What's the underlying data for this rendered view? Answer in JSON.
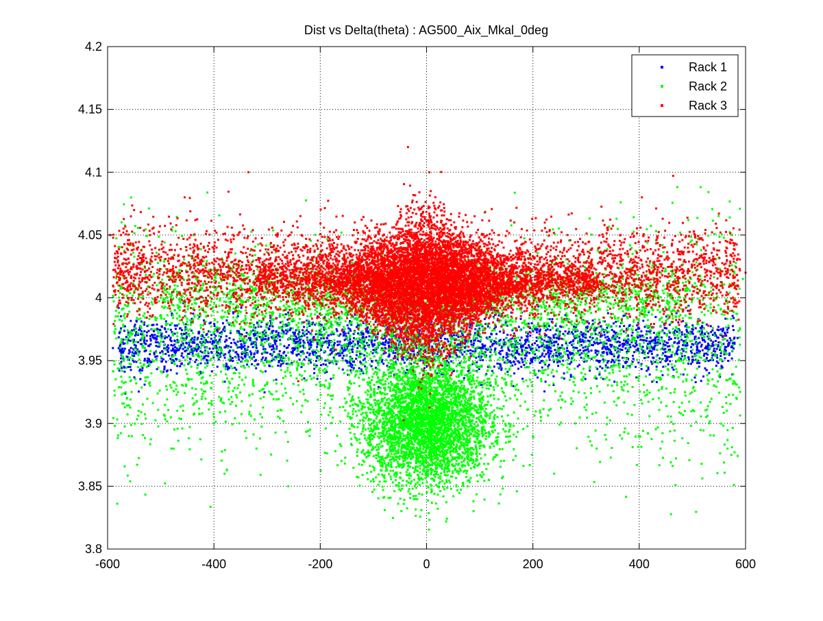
{
  "chart_data": {
    "type": "scatter",
    "title": "Dist vs Delta(theta) : AG500_Aix_Mkal_0deg",
    "xlabel": "",
    "ylabel": "",
    "xlim": [
      -600,
      600
    ],
    "ylim": [
      3.8,
      4.2
    ],
    "x_ticks": [
      -600,
      -400,
      -200,
      0,
      200,
      400,
      600
    ],
    "y_ticks": [
      3.8,
      3.85,
      3.9,
      3.95,
      4.0,
      4.05,
      4.1,
      4.15,
      4.2
    ],
    "x_tick_labels": [
      "-600",
      "-400",
      "-200",
      "0",
      "200",
      "400",
      "600"
    ],
    "y_tick_labels": [
      "3.8",
      "3.85",
      "3.9",
      "3.95",
      "4",
      "4.05",
      "4.1",
      "4.15",
      "4.2"
    ],
    "grid": true,
    "legend_position": "top-right",
    "series": [
      {
        "name": "Rack 1",
        "color": "#0000ff",
        "marker": "dot",
        "distribution": {
          "x_range": [
            -590,
            590
          ],
          "y_center": 3.962,
          "y_spread": 0.012,
          "points": [
            [
              -590,
              3.96
            ],
            [
              -570,
              3.95
            ],
            [
              -548,
              3.97
            ],
            [
              -530,
              3.96
            ],
            [
              -512,
              3.955
            ],
            [
              -495,
              3.965
            ],
            [
              -470,
              3.958
            ],
            [
              -452,
              3.972
            ],
            [
              -430,
              3.962
            ],
            [
              -412,
              3.95
            ],
            [
              -390,
              3.966
            ],
            [
              -370,
              3.958
            ],
            [
              -350,
              3.971
            ],
            [
              -330,
              3.955
            ],
            [
              -310,
              3.963
            ],
            [
              -290,
              3.968
            ],
            [
              -270,
              3.952
            ],
            [
              -250,
              3.96
            ],
            [
              -230,
              3.97
            ],
            [
              -210,
              3.957
            ],
            [
              -190,
              3.965
            ],
            [
              -170,
              3.955
            ],
            [
              -150,
              3.968
            ],
            [
              -130,
              3.96
            ],
            [
              -110,
              3.972
            ],
            [
              110,
              3.962
            ],
            [
              130,
              3.955
            ],
            [
              150,
              3.968
            ],
            [
              170,
              3.958
            ],
            [
              190,
              3.966
            ],
            [
              210,
              3.952
            ],
            [
              230,
              3.961
            ],
            [
              250,
              3.97
            ],
            [
              270,
              3.956
            ],
            [
              290,
              3.965
            ],
            [
              310,
              3.958
            ],
            [
              330,
              3.97
            ],
            [
              350,
              3.955
            ],
            [
              370,
              3.963
            ],
            [
              390,
              3.968
            ],
            [
              410,
              3.952
            ],
            [
              430,
              3.962
            ],
            [
              452,
              3.971
            ],
            [
              470,
              3.956
            ],
            [
              490,
              3.964
            ],
            [
              512,
              3.958
            ],
            [
              535,
              3.966
            ],
            [
              560,
              3.955
            ],
            [
              585,
              3.968
            ]
          ]
        }
      },
      {
        "name": "Rack 2",
        "color": "#00ff00",
        "marker": "dot",
        "distribution": {
          "x_range": [
            -590,
            595
          ],
          "y_center": 3.92,
          "points": [
            [
              -580,
              4.01
            ],
            [
              -560,
              3.89
            ],
            [
              -540,
              3.99
            ],
            [
              -520,
              3.93
            ],
            [
              -500,
              4.0
            ],
            [
              -480,
              3.88
            ],
            [
              -460,
              3.97
            ],
            [
              -440,
              3.92
            ],
            [
              -420,
              4.01
            ],
            [
              -400,
              3.9
            ],
            [
              -380,
              3.86
            ],
            [
              -360,
              3.94
            ],
            [
              -340,
              3.99
            ],
            [
              -320,
              3.88
            ],
            [
              -300,
              3.95
            ],
            [
              -280,
              3.91
            ],
            [
              -260,
              3.85
            ],
            [
              -240,
              3.97
            ],
            [
              -220,
              3.89
            ],
            [
              -200,
              3.93
            ],
            [
              -180,
              3.98
            ],
            [
              -160,
              3.87
            ],
            [
              -140,
              3.92
            ],
            [
              -120,
              3.96
            ],
            [
              -100,
              3.88
            ],
            [
              -80,
              3.91
            ],
            [
              -60,
              3.86
            ],
            [
              -40,
              3.9
            ],
            [
              -20,
              3.87
            ],
            [
              0,
              3.85
            ],
            [
              20,
              3.88
            ],
            [
              40,
              3.9
            ],
            [
              60,
              3.86
            ],
            [
              80,
              3.92
            ],
            [
              100,
              3.88
            ],
            [
              120,
              3.95
            ],
            [
              140,
              3.87
            ],
            [
              160,
              3.93
            ],
            [
              180,
              3.98
            ],
            [
              200,
              3.89
            ],
            [
              220,
              3.94
            ],
            [
              240,
              3.86
            ],
            [
              260,
              3.97
            ],
            [
              280,
              3.9
            ],
            [
              300,
              3.95
            ],
            [
              320,
              3.88
            ],
            [
              340,
              3.99
            ],
            [
              360,
              3.92
            ],
            [
              380,
              3.96
            ],
            [
              400,
              3.89
            ],
            [
              420,
              4.0
            ],
            [
              440,
              3.88
            ],
            [
              460,
              3.98
            ],
            [
              480,
              3.95
            ],
            [
              500,
              4.01
            ],
            [
              520,
              3.97
            ],
            [
              540,
              4.0
            ],
            [
              560,
              3.99
            ],
            [
              580,
              4.01
            ],
            [
              595,
              4.015
            ]
          ]
        }
      },
      {
        "name": "Rack 3",
        "color": "#ff0000",
        "marker": "dot",
        "distribution": {
          "x_range": [
            -595,
            600
          ],
          "y_center": 4.02,
          "points": [
            [
              -595,
              4.05
            ],
            [
              -575,
              4.02
            ],
            [
              -555,
              4.0
            ],
            [
              -535,
              4.03
            ],
            [
              -515,
              4.01
            ],
            [
              -495,
              4.04
            ],
            [
              -475,
              4.02
            ],
            [
              -455,
              4.08
            ],
            [
              -435,
              4.03
            ],
            [
              -415,
              4.0
            ],
            [
              -395,
              4.04
            ],
            [
              -375,
              4.02
            ],
            [
              -355,
              4.05
            ],
            [
              -335,
              4.1
            ],
            [
              -315,
              4.03
            ],
            [
              -295,
              4.01
            ],
            [
              -275,
              4.04
            ],
            [
              -255,
              4.02
            ],
            [
              -235,
              4.05
            ],
            [
              -215,
              4.03
            ],
            [
              -195,
              4.01
            ],
            [
              -175,
              4.04
            ],
            [
              -155,
              4.02
            ],
            [
              -135,
              4.06
            ],
            [
              -115,
              4.03
            ],
            [
              -95,
              4.0
            ],
            [
              -75,
              4.04
            ],
            [
              -55,
              4.06
            ],
            [
              -35,
              4.12
            ],
            [
              -15,
              4.03
            ],
            [
              5,
              4.1
            ],
            [
              25,
              4.05
            ],
            [
              45,
              4.02
            ],
            [
              65,
              4.04
            ],
            [
              85,
              4.01
            ],
            [
              105,
              4.05
            ],
            [
              125,
              4.02
            ],
            [
              145,
              4.04
            ],
            [
              165,
              4.06
            ],
            [
              185,
              4.03
            ],
            [
              205,
              4.0
            ],
            [
              225,
              4.04
            ],
            [
              245,
              4.02
            ],
            [
              265,
              4.05
            ],
            [
              285,
              4.03
            ],
            [
              305,
              4.01
            ],
            [
              325,
              4.04
            ],
            [
              345,
              4.02
            ],
            [
              365,
              4.05
            ],
            [
              385,
              4.03
            ],
            [
              405,
              4.08
            ],
            [
              425,
              4.02
            ],
            [
              445,
              4.04
            ],
            [
              465,
              4.01
            ],
            [
              485,
              4.03
            ],
            [
              505,
              4.05
            ],
            [
              525,
              4.02
            ],
            [
              545,
              4.0
            ],
            [
              565,
              4.03
            ],
            [
              585,
              4.01
            ],
            [
              600,
              4.02
            ]
          ]
        }
      }
    ]
  }
}
